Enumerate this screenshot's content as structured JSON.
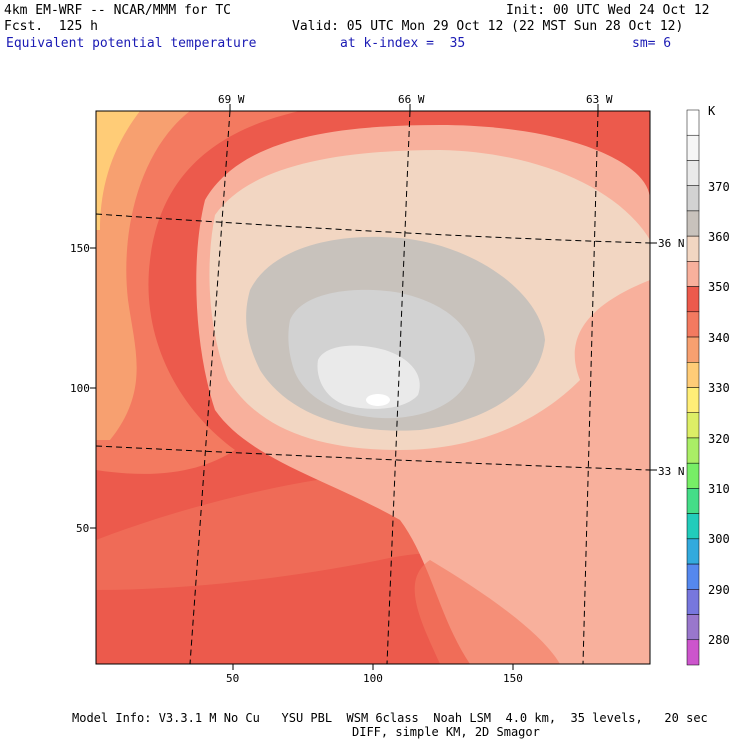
{
  "header": {
    "model_line": "4km EM-WRF -- NCAR/MMM for TC",
    "forecast_line": "Fcst.  125 h",
    "field_line": "Equivalent potential temperature",
    "kindex_line": "at k-index =  35",
    "smooth_line": "sm= 6",
    "init_line": "Init: 00 UTC Wed 24 Oct 12",
    "valid_line": "Valid: 05 UTC Mon 29 Oct 12 (22 MST Sun 28 Oct 12)"
  },
  "map": {
    "longitude_labels": [
      "69 W",
      "66 W",
      "63 W"
    ],
    "latitude_labels": [
      "36 N",
      "33 N"
    ],
    "x_ticks": [
      50,
      100,
      150
    ],
    "y_ticks": [
      150,
      100,
      50
    ]
  },
  "colorbar": {
    "unit": "K",
    "levels": [
      "370",
      "360",
      "350",
      "340",
      "330",
      "320",
      "310",
      "300",
      "290",
      "280"
    ],
    "colors": {
      "lt275": "#cc55cc",
      "275_280": "#9977cc",
      "280_285": "#7777dd",
      "285_290": "#5588ee",
      "290_295": "#33aadd",
      "295_300": "#22ccbb",
      "300_305": "#44dd88",
      "305_310": "#77ee66",
      "310_315": "#aaee66",
      "315_320": "#ddee66",
      "320_325": "#ffee77",
      "325_330": "#ffcc77",
      "330_335": "#f7a070",
      "335_340": "#f37a60",
      "340_345": "#ec5a4c",
      "345_350": "#f8b09c",
      "350_355": "#f2d6c2",
      "355_360": "#c8c2bc",
      "360_365": "#d2d2d2",
      "365_370": "#eaeaea",
      "370_375": "#f6f6f6",
      "gt375": "#ffffff"
    }
  },
  "footer": {
    "info_line": "Model Info: V3.3.1 M No Cu   YSU PBL  WSM 6class  Noah LSM  4.0 km,  35 levels,   20 sec",
    "diff_line": "DIFF, simple KM, 2D Smagor"
  }
}
